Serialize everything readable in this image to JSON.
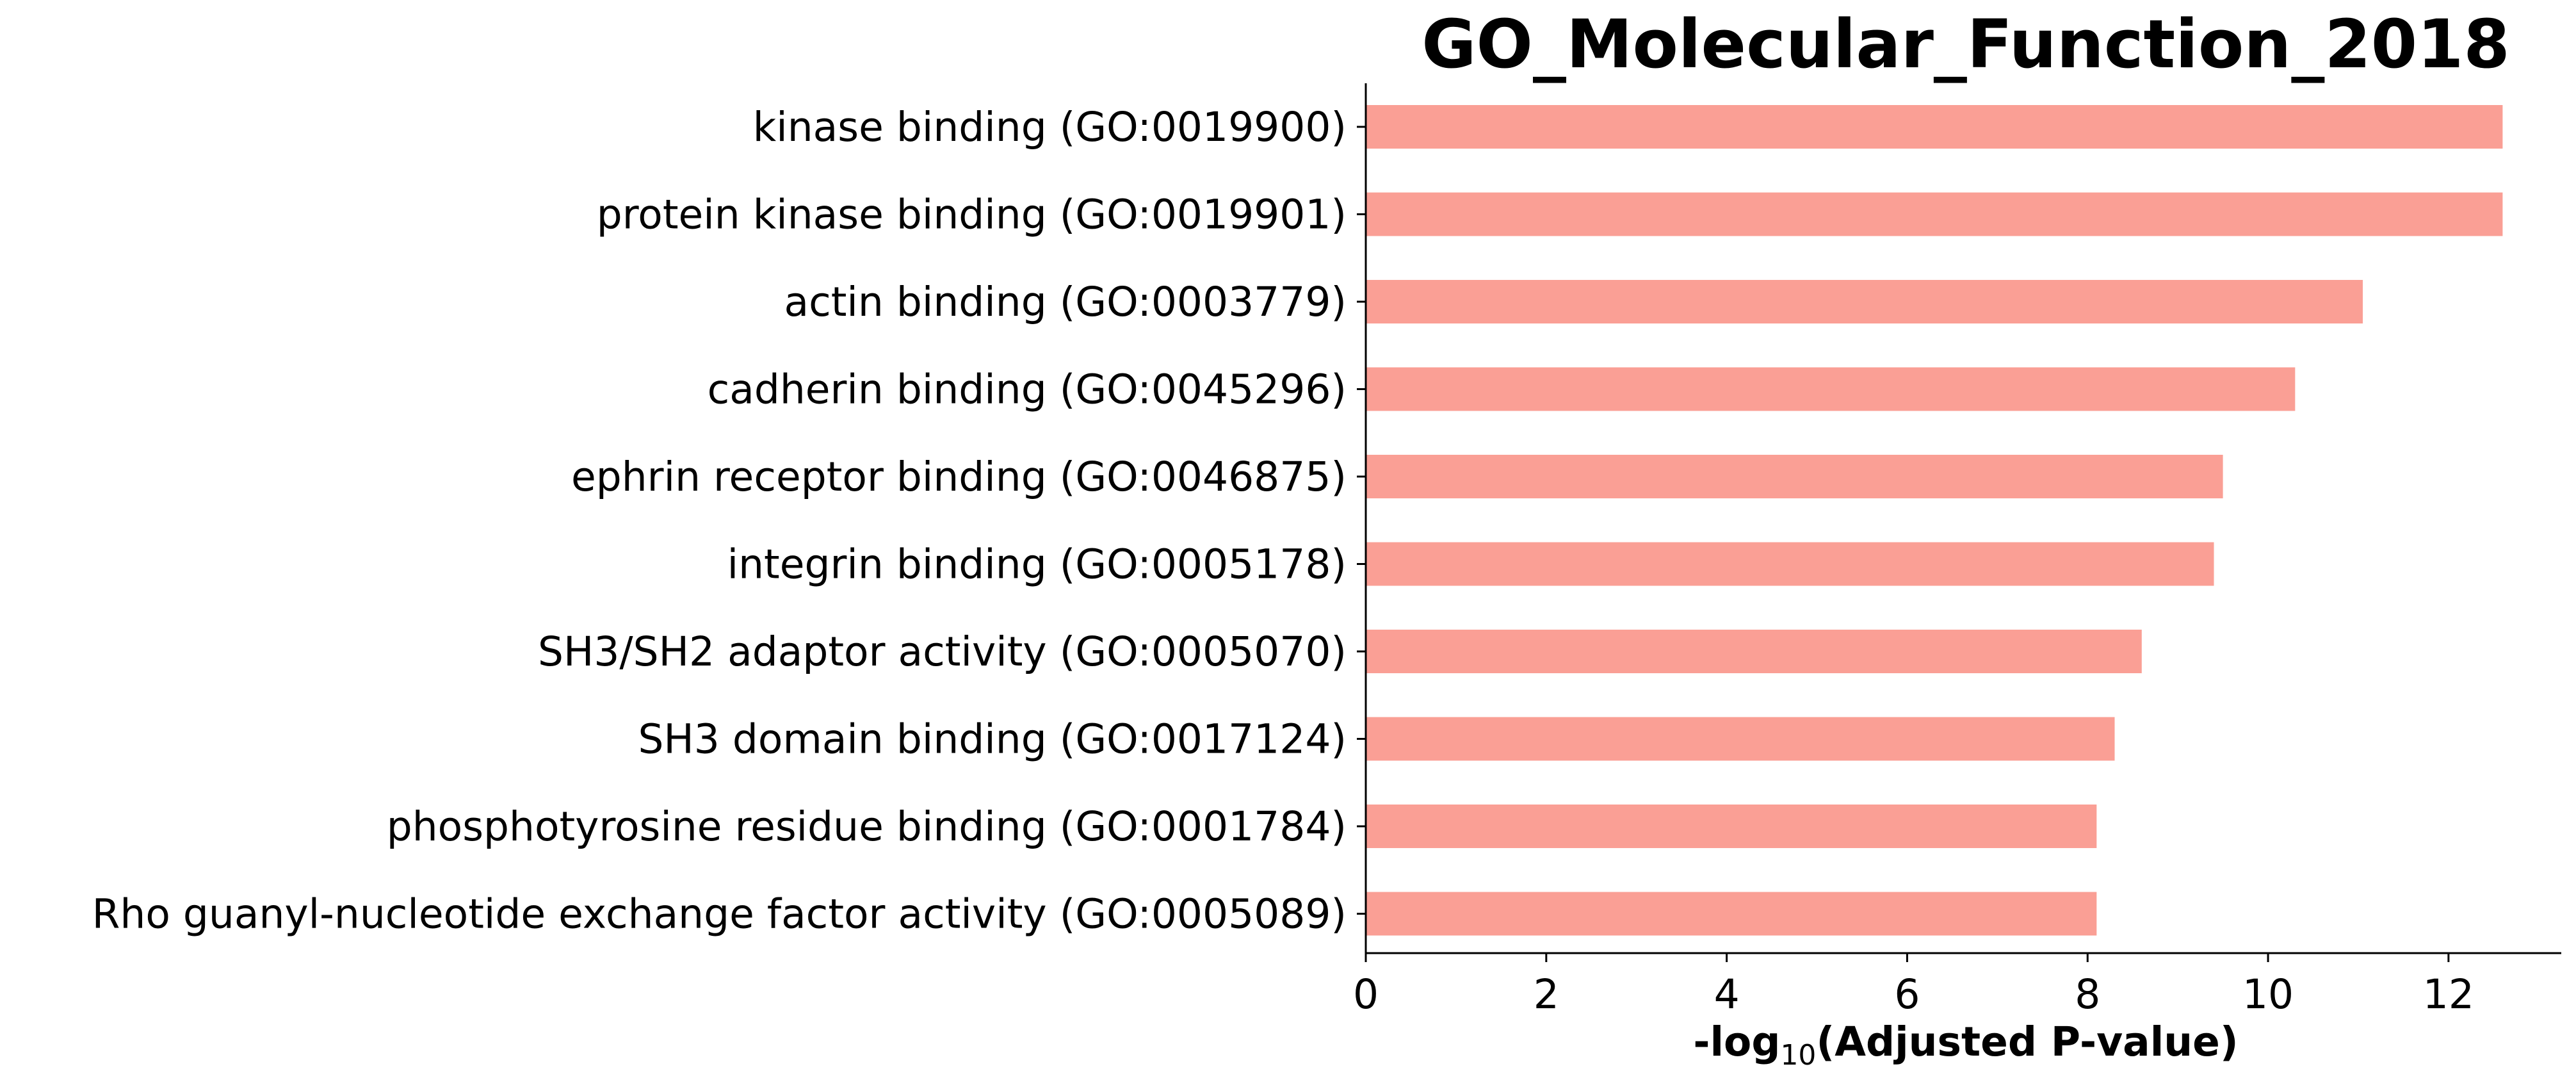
{
  "chart_data": {
    "type": "bar",
    "orientation": "horizontal",
    "title": "GO_Molecular_Function_2018",
    "xlabel_parts": {
      "prefix": "-log",
      "subscript": "10",
      "suffix": "(Adjusted P-value)"
    },
    "ylabel": "",
    "categories": [
      "kinase binding (GO:0019900)",
      "protein kinase binding (GO:0019901)",
      "actin binding (GO:0003779)",
      "cadherin binding (GO:0045296)",
      "ephrin receptor binding (GO:0046875)",
      "integrin binding (GO:0005178)",
      "SH3/SH2 adaptor activity (GO:0005070)",
      "SH3 domain binding (GO:0017124)",
      "phosphotyrosine residue binding (GO:0001784)",
      "Rho guanyl-nucleotide exchange factor activity (GO:0005089)"
    ],
    "values": [
      12.6,
      12.6,
      11.05,
      10.3,
      9.5,
      9.4,
      8.6,
      8.3,
      8.1,
      8.1
    ],
    "xlim": [
      0,
      13.25
    ],
    "xticks": [
      0,
      2,
      4,
      6,
      8,
      10,
      12
    ],
    "bar_color": "#fa9f95",
    "grid": false,
    "legend": "none"
  }
}
